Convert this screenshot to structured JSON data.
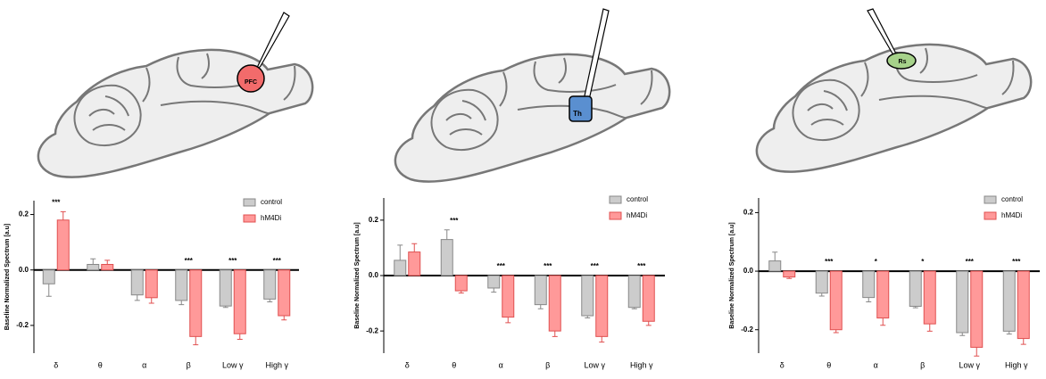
{
  "regions": [
    "PFC",
    "Th",
    "Rs"
  ],
  "chart_data": [
    {
      "type": "bar",
      "y_label": "Baseline Normalized Spectrum [a.u]",
      "categories": [
        "δ",
        "θ",
        "α",
        "β",
        "Low γ",
        "High γ"
      ],
      "series": [
        {
          "name": "control",
          "color": "#cccccc",
          "values": [
            -0.05,
            0.02,
            -0.09,
            -0.11,
            -0.13,
            -0.105
          ],
          "errors": [
            0.045,
            0.02,
            0.02,
            0.015,
            0.005,
            0.01
          ]
        },
        {
          "name": "hM4Di",
          "color": "#ff9999",
          "values": [
            0.18,
            0.02,
            -0.1,
            -0.24,
            -0.23,
            -0.165
          ],
          "errors": [
            0.03,
            0.015,
            0.02,
            0.03,
            0.02,
            0.015
          ]
        }
      ],
      "significance": [
        "***",
        null,
        null,
        "***",
        "***",
        "***"
      ],
      "ylim": [
        -0.3,
        0.25
      ],
      "yticks": [
        -0.2,
        {
          "value": 0,
          "label": "0.0"
        },
        0.2
      ]
    },
    {
      "type": "bar",
      "y_label": "Baseline Normalized Spectrum [a.u]",
      "categories": [
        "δ",
        "θ",
        "α",
        "β",
        "Low γ",
        "High γ"
      ],
      "series": [
        {
          "name": "control",
          "color": "#cccccc",
          "values": [
            0.055,
            0.13,
            -0.045,
            -0.105,
            -0.145,
            -0.115
          ],
          "errors": [
            0.055,
            0.035,
            0.015,
            0.015,
            0.008,
            0.005
          ]
        },
        {
          "name": "hM4Di",
          "color": "#ff9999",
          "values": [
            0.085,
            -0.055,
            -0.15,
            -0.2,
            -0.22,
            -0.165
          ],
          "errors": [
            0.03,
            0.008,
            0.02,
            0.02,
            0.02,
            0.015
          ]
        }
      ],
      "significance": [
        null,
        "***",
        "***",
        "***",
        "***",
        "***"
      ],
      "ylim": [
        -0.28,
        0.28
      ],
      "yticks": [
        -0.2,
        {
          "value": 0,
          "label": "0.0"
        },
        0.2
      ]
    },
    {
      "type": "bar",
      "y_label": "Baseline Normalized Spectrum [a.u]",
      "categories": [
        "δ",
        "θ",
        "α",
        "β",
        "Low γ",
        "High γ"
      ],
      "series": [
        {
          "name": "control",
          "color": "#cccccc",
          "values": [
            0.035,
            -0.075,
            -0.09,
            -0.12,
            -0.21,
            -0.205
          ],
          "errors": [
            0.03,
            0.01,
            0.015,
            0.005,
            0.01,
            0.01
          ]
        },
        {
          "name": "hM4Di",
          "color": "#ff9999",
          "values": [
            -0.02,
            -0.2,
            -0.16,
            -0.18,
            -0.26,
            -0.23
          ],
          "errors": [
            0.005,
            0.01,
            0.025,
            0.025,
            0.03,
            0.02
          ]
        }
      ],
      "significance": [
        null,
        "***",
        "*",
        "*",
        "***",
        "***"
      ],
      "ylim": [
        -0.28,
        0.25
      ],
      "yticks": [
        -0.2,
        {
          "value": 0,
          "label": "0.0"
        },
        0.2
      ]
    }
  ]
}
